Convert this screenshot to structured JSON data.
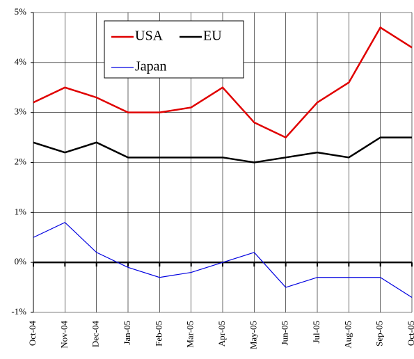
{
  "chart_data": {
    "type": "line",
    "categories": [
      "Oct-04",
      "Nov-04",
      "Dec-04",
      "Jan-05",
      "Feb-05",
      "Mar-05",
      "Apr-05",
      "May-05",
      "Jun-05",
      "Jul-05",
      "Aug-05",
      "Sep-05",
      "Oct-05"
    ],
    "series": [
      {
        "name": "USA",
        "color": "#e00000",
        "values": [
          3.2,
          3.5,
          3.3,
          3.0,
          3.0,
          3.1,
          3.5,
          2.8,
          2.5,
          3.2,
          3.6,
          4.7,
          4.3
        ]
      },
      {
        "name": "EU",
        "color": "#000000",
        "values": [
          2.4,
          2.2,
          2.4,
          2.1,
          2.1,
          2.1,
          2.1,
          2.0,
          2.1,
          2.2,
          2.1,
          2.5,
          2.5
        ]
      },
      {
        "name": "Japan",
        "color": "#0000e0",
        "values": [
          0.5,
          0.8,
          0.2,
          -0.1,
          -0.3,
          -0.2,
          0.0,
          0.2,
          -0.5,
          -0.3,
          -0.3,
          -0.3,
          -0.7
        ]
      }
    ],
    "ylim": [
      -1,
      5
    ],
    "yticks": [
      {
        "value": -1,
        "label": "-1%"
      },
      {
        "value": 0,
        "label": "0%"
      },
      {
        "value": 1,
        "label": "1%"
      },
      {
        "value": 2,
        "label": "2%"
      },
      {
        "value": 3,
        "label": "3%"
      },
      {
        "value": 4,
        "label": "4%"
      },
      {
        "value": 5,
        "label": "5%"
      }
    ],
    "grid": true
  }
}
